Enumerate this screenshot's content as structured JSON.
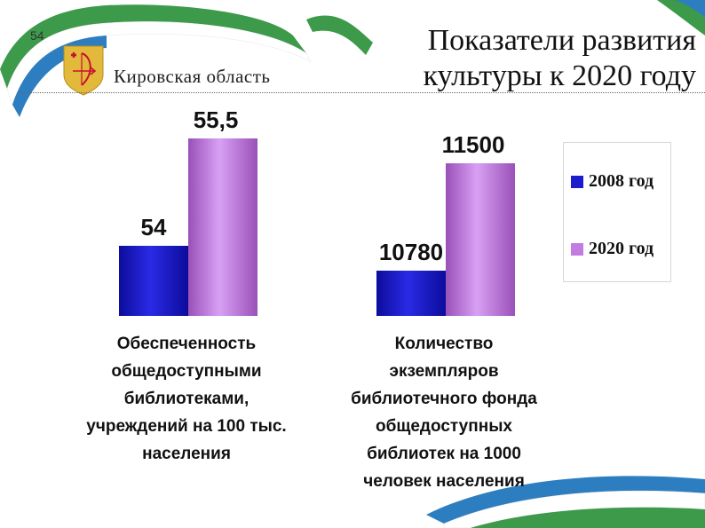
{
  "slide": {
    "page_number": "54",
    "region_name": "Кировская область",
    "title_line1": "Показатели развития",
    "title_line2": "культуры к 2020 году"
  },
  "legend": [
    {
      "label": "2008 год",
      "color": "#1c1ccc"
    },
    {
      "label": "2020 год",
      "color": "#c27be0"
    }
  ],
  "chart_data": [
    {
      "type": "bar",
      "categories": [
        "2008 год",
        "2020 год"
      ],
      "values": [
        54,
        55.5
      ],
      "value_labels": [
        "54",
        "55,5"
      ],
      "caption": [
        "Обеспеченность",
        "общедоступными",
        "библиотеками,",
        "учреждений на 100 тыс.",
        "населения"
      ],
      "grid": false
    },
    {
      "type": "bar",
      "categories": [
        "2008 год",
        "2020 год"
      ],
      "values": [
        10780,
        11500
      ],
      "value_labels": [
        "10780",
        "11500"
      ],
      "caption": [
        "Количество",
        "экземпляров",
        "библиотечного фонда",
        "общедоступных",
        "библиотек на 1000",
        "человек населения"
      ],
      "grid": false
    }
  ]
}
